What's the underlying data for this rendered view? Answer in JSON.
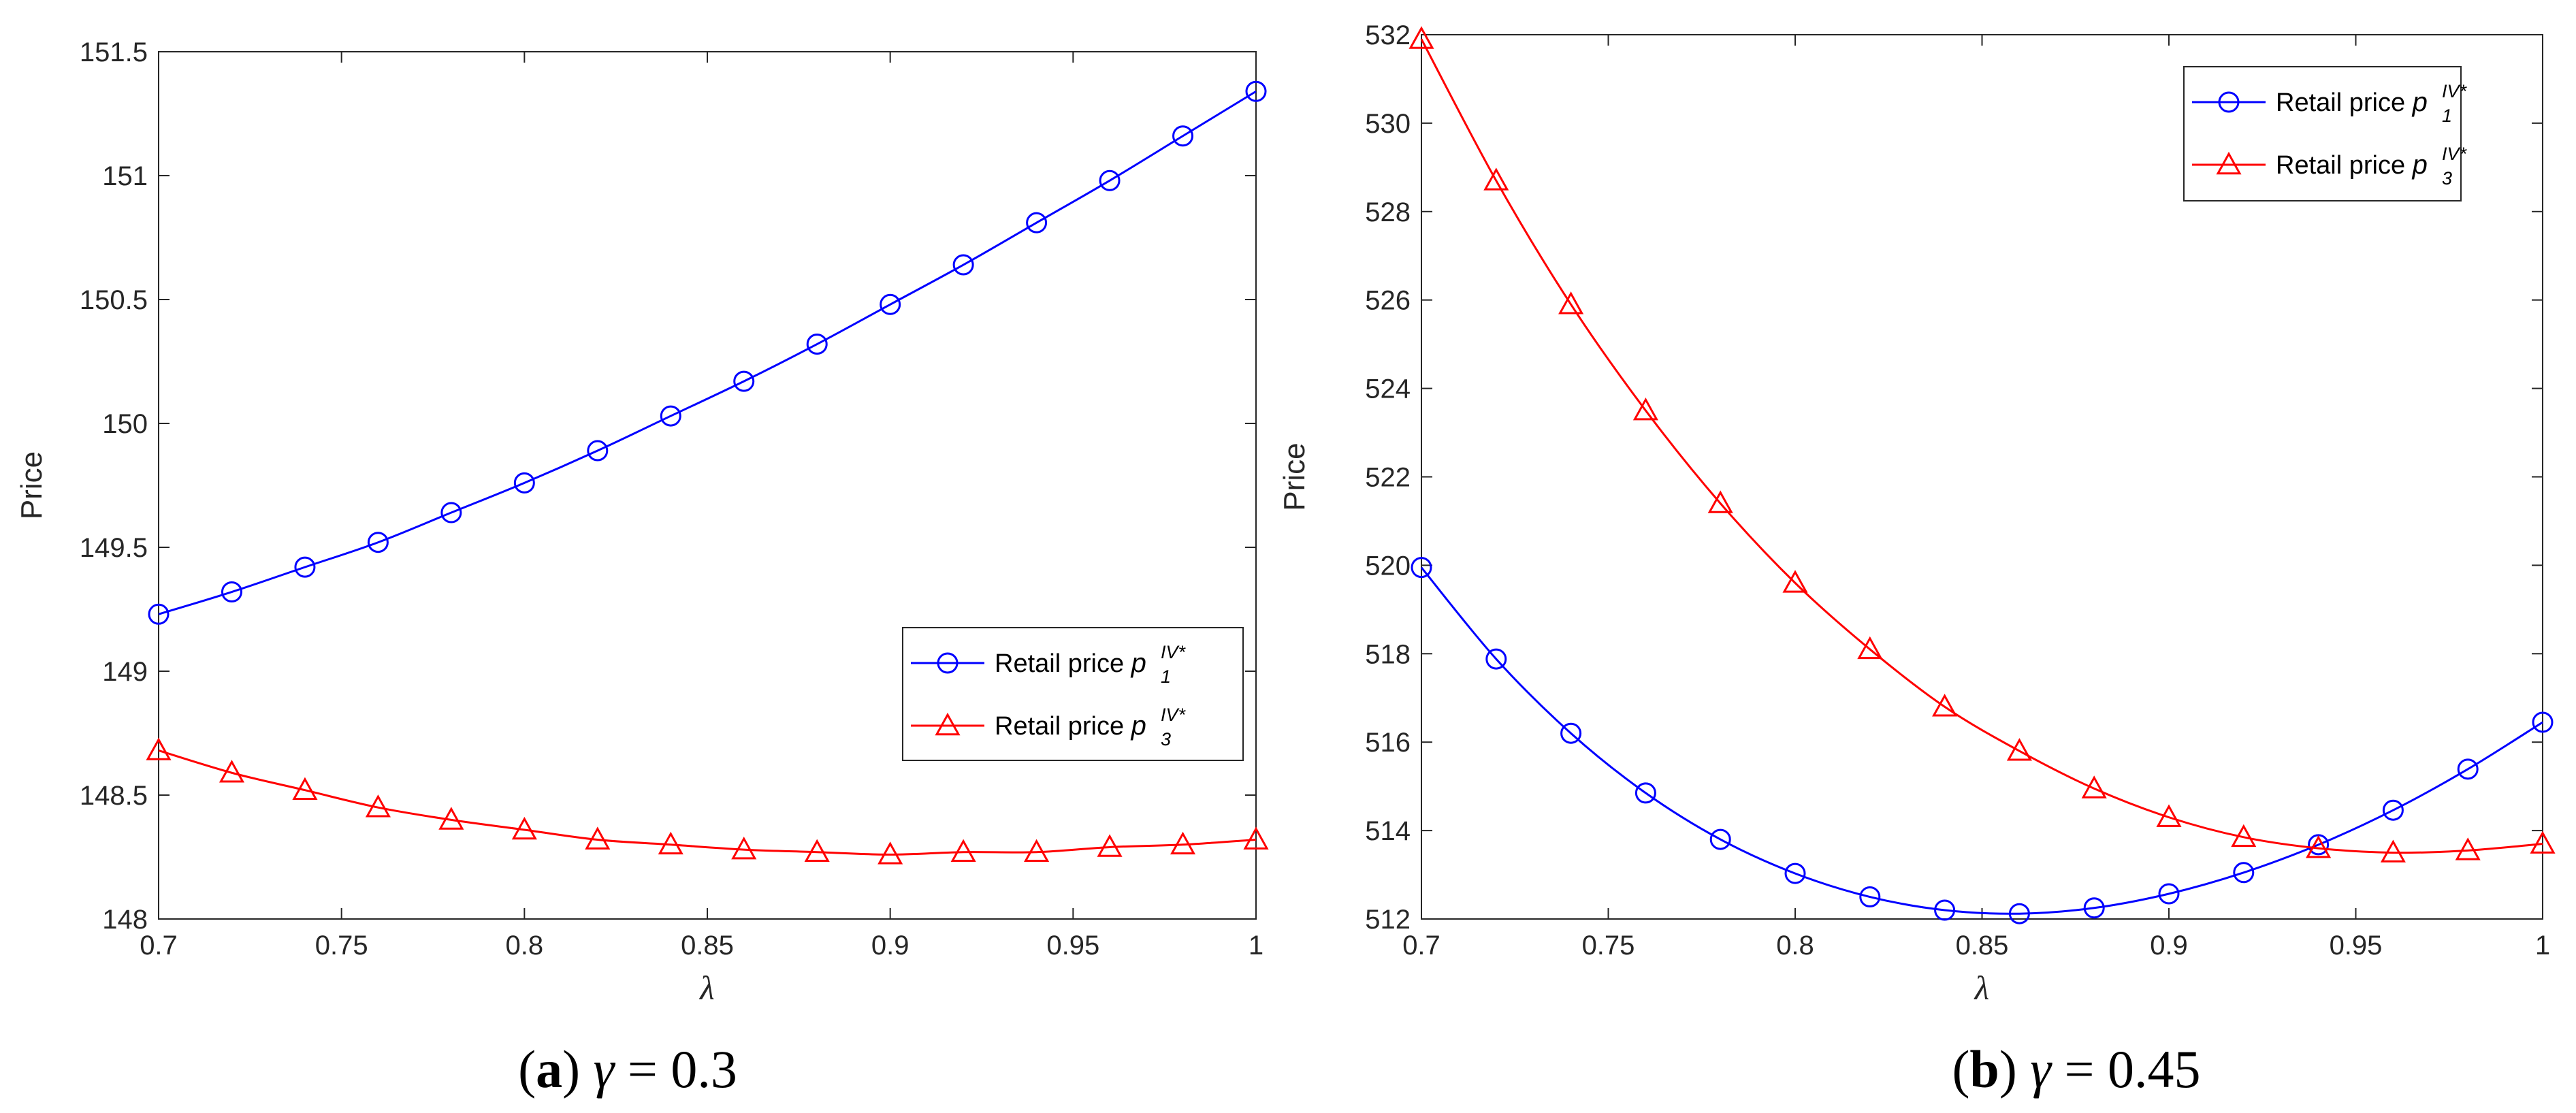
{
  "chart_data": [
    {
      "type": "line",
      "caption": {
        "letter": "a",
        "open": "(",
        "close": ")",
        "variable": "γ",
        "equation": "= 0.3"
      },
      "xlabel": "λ",
      "ylabel": "Price",
      "xlim": [
        0.7,
        1.0
      ],
      "ylim": [
        148,
        151.5
      ],
      "xticks": [
        "0.7",
        "0.75",
        "0.8",
        "0.85",
        "0.9",
        "0.95",
        "1"
      ],
      "yticks": [
        "148",
        "148.5",
        "149",
        "149.5",
        "150",
        "150.5",
        "151",
        "151.5"
      ],
      "legend_position": "center-right",
      "x": [
        0.7,
        0.72,
        0.74,
        0.76,
        0.78,
        0.8,
        0.82,
        0.84,
        0.86,
        0.88,
        0.9,
        0.92,
        0.94,
        0.96,
        0.98,
        1.0
      ],
      "series": [
        {
          "name": "Retail price p1IV*",
          "label": "Retail price",
          "symbol": "p",
          "subscript": "1",
          "superscript": "IV*",
          "color": "#0000ff",
          "marker": "circle",
          "values": [
            149.23,
            149.32,
            149.42,
            149.52,
            149.64,
            149.76,
            149.89,
            150.03,
            150.17,
            150.32,
            150.48,
            150.64,
            150.81,
            150.98,
            151.16,
            151.34
          ]
        },
        {
          "name": "Retail price p3IV*",
          "label": "Retail price",
          "symbol": "p",
          "subscript": "3",
          "superscript": "IV*",
          "color": "#ff0000",
          "marker": "triangle",
          "values": [
            148.68,
            148.59,
            148.52,
            148.45,
            148.4,
            148.36,
            148.32,
            148.3,
            148.28,
            148.27,
            148.26,
            148.27,
            148.27,
            148.29,
            148.3,
            148.32
          ]
        }
      ]
    },
    {
      "type": "line",
      "caption": {
        "letter": "b",
        "open": "(",
        "close": ")",
        "variable": "γ",
        "equation": "= 0.45"
      },
      "xlabel": "λ",
      "ylabel": "Price",
      "xlim": [
        0.7,
        1.0
      ],
      "ylim": [
        512,
        532
      ],
      "xticks": [
        "0.7",
        "0.75",
        "0.8",
        "0.85",
        "0.9",
        "0.95",
        "1"
      ],
      "yticks": [
        "512",
        "514",
        "516",
        "518",
        "520",
        "522",
        "524",
        "526",
        "528",
        "530",
        "532"
      ],
      "legend_position": "top-right",
      "x": [
        0.7,
        0.72,
        0.74,
        0.76,
        0.78,
        0.8,
        0.82,
        0.84,
        0.86,
        0.88,
        0.9,
        0.92,
        0.94,
        0.96,
        0.98,
        1.0
      ],
      "series": [
        {
          "name": "Retail price p1IV*",
          "label": "Retail price",
          "symbol": "p",
          "subscript": "1",
          "superscript": "IV*",
          "color": "#0000ff",
          "marker": "circle",
          "values": [
            519.95,
            517.88,
            516.2,
            514.85,
            513.8,
            513.03,
            512.5,
            512.2,
            512.12,
            512.25,
            512.57,
            513.05,
            513.68,
            514.46,
            515.39,
            516.45
          ]
        },
        {
          "name": "Retail price p3IV*",
          "label": "Retail price",
          "symbol": "p",
          "subscript": "3",
          "superscript": "IV*",
          "color": "#ff0000",
          "marker": "triangle",
          "values": [
            531.9,
            528.7,
            525.9,
            523.5,
            521.4,
            519.6,
            518.1,
            516.8,
            515.8,
            514.95,
            514.3,
            513.85,
            513.6,
            513.5,
            513.55,
            513.7
          ]
        }
      ]
    }
  ]
}
